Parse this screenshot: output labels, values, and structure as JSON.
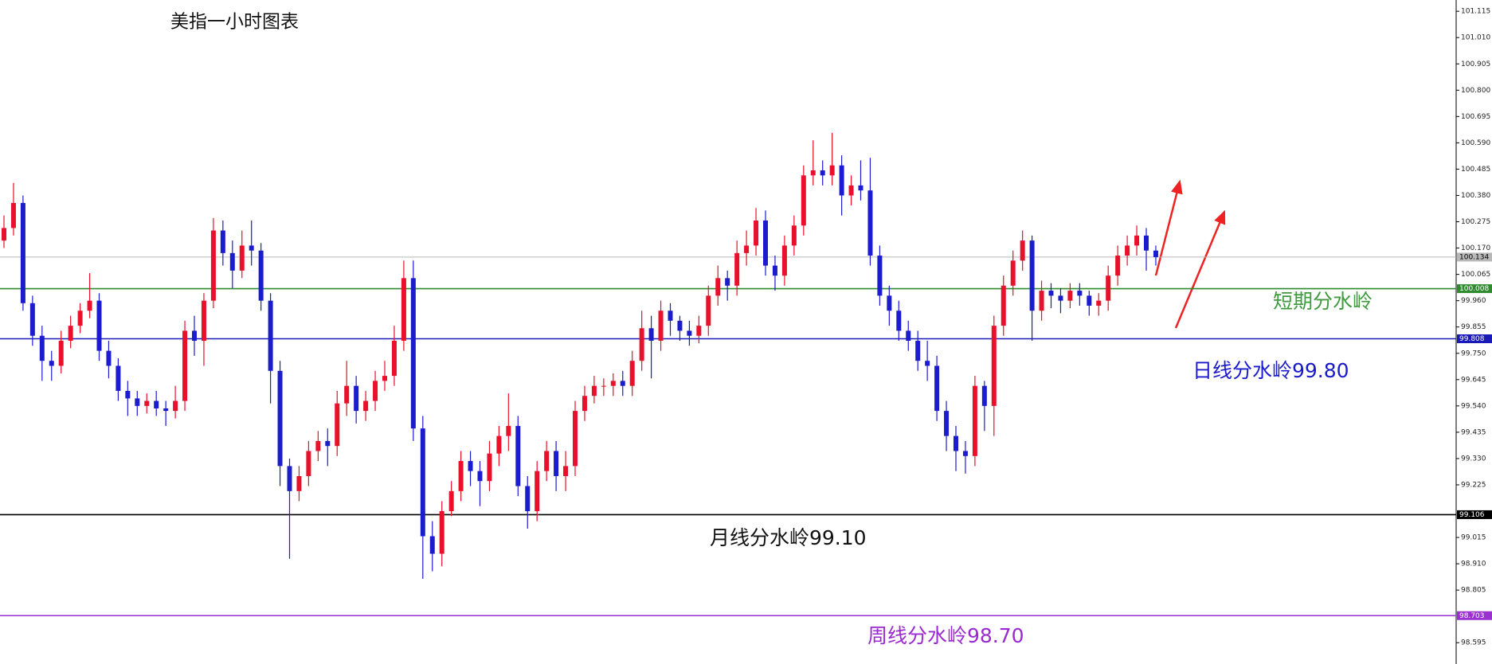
{
  "chart_data": {
    "type": "candlestick",
    "title": "美指一小时图表",
    "up_color": "#e8102a",
    "down_color": "#1c1ccf",
    "ylim": [
      98.51,
      101.16
    ],
    "yticks": [
      101.115,
      {
        "value": 101.01,
        "label": "101.010"
      },
      100.905,
      {
        "value": 100.8,
        "label": "100.800"
      },
      100.695,
      {
        "value": 100.59,
        "label": "100.590"
      },
      100.485,
      {
        "value": 100.38,
        "label": "100.380"
      },
      100.275,
      {
        "value": 100.17,
        "label": "100.170"
      },
      100.065,
      {
        "value": 99.96,
        "label": "99.960"
      },
      99.855,
      {
        "value": 99.75,
        "label": "99.750"
      },
      99.645,
      {
        "value": 99.54,
        "label": "99.540"
      },
      99.435,
      {
        "value": 99.33,
        "label": "99.330"
      },
      99.225,
      99.015,
      {
        "value": 98.91,
        "label": "98.910"
      },
      98.805,
      98.595
    ],
    "open": [
      100.2,
      100.25,
      100.35,
      99.95,
      99.82,
      99.72,
      99.7,
      99.8,
      99.86,
      99.92,
      99.96,
      99.76,
      99.7,
      99.6,
      99.57,
      99.54,
      99.56,
      99.53,
      99.52,
      99.56,
      99.84,
      99.8,
      99.96,
      100.24,
      100.15,
      100.08,
      100.18,
      100.16,
      99.96,
      99.68,
      99.3,
      99.2,
      99.26,
      99.36,
      99.4,
      99.38,
      99.55,
      99.62,
      99.52,
      99.56,
      99.64,
      99.66,
      99.8,
      100.05,
      99.45,
      99.02,
      98.95,
      99.12,
      99.2,
      99.32,
      99.28,
      99.24,
      99.35,
      99.42,
      99.46,
      99.22,
      99.12,
      99.28,
      99.36,
      99.26,
      99.3,
      99.52,
      99.58,
      99.62,
      99.62,
      99.64,
      99.62,
      99.72,
      99.85,
      99.8,
      99.92,
      99.88,
      99.84,
      99.82,
      99.86,
      99.98,
      100.05,
      100.02,
      100.15,
      100.18,
      100.28,
      100.1,
      100.06,
      100.18,
      100.26,
      100.46,
      100.48,
      100.46,
      100.5,
      100.38,
      100.42,
      100.4,
      100.14,
      99.98,
      99.92,
      99.84,
      99.8,
      99.72,
      99.7,
      99.52,
      99.42,
      99.36,
      99.34,
      99.62,
      99.54,
      99.86,
      100.02,
      100.12,
      100.2,
      99.92,
      100.0,
      99.98,
      99.96,
      100.0,
      99.98,
      99.94,
      99.96,
      100.06,
      100.14,
      100.18,
      100.22,
      100.16
    ],
    "high": [
      100.3,
      100.43,
      100.38,
      99.98,
      99.86,
      99.76,
      99.84,
      99.9,
      99.95,
      100.07,
      99.99,
      99.8,
      99.73,
      99.64,
      99.6,
      99.59,
      99.6,
      99.56,
      99.62,
      99.88,
      99.9,
      99.99,
      100.29,
      100.28,
      100.2,
      100.24,
      100.28,
      100.19,
      99.99,
      99.72,
      99.33,
      99.3,
      99.4,
      99.44,
      99.45,
      99.6,
      99.72,
      99.66,
      99.6,
      99.68,
      99.72,
      99.86,
      100.12,
      100.12,
      99.5,
      99.08,
      99.16,
      99.24,
      99.36,
      99.36,
      99.32,
      99.4,
      99.46,
      99.59,
      99.5,
      99.26,
      99.32,
      99.4,
      99.4,
      99.36,
      99.56,
      99.62,
      99.66,
      99.65,
      99.67,
      99.68,
      99.76,
      99.92,
      99.9,
      99.96,
      99.95,
      99.9,
      99.88,
      99.9,
      100.02,
      100.1,
      100.08,
      100.2,
      100.24,
      100.33,
      100.32,
      100.14,
      100.22,
      100.3,
      100.5,
      100.6,
      100.52,
      100.63,
      100.54,
      100.46,
      100.52,
      100.53,
      100.18,
      100.02,
      99.96,
      99.88,
      99.84,
      99.8,
      99.74,
      99.56,
      99.46,
      99.4,
      99.66,
      99.64,
      99.9,
      100.06,
      100.16,
      100.24,
      100.22,
      100.04,
      100.03,
      100.01,
      100.03,
      100.03,
      100.0,
      99.99,
      100.1,
      100.18,
      100.22,
      100.26,
      100.25,
      100.18
    ],
    "low": [
      100.17,
      100.22,
      99.92,
      99.78,
      99.64,
      99.64,
      99.67,
      99.77,
      99.83,
      99.89,
      99.72,
      99.65,
      99.56,
      99.5,
      99.5,
      99.51,
      99.5,
      99.46,
      99.49,
      99.52,
      99.74,
      99.7,
      99.93,
      100.1,
      100.01,
      100.05,
      100.1,
      99.92,
      99.55,
      99.22,
      98.93,
      99.16,
      99.22,
      99.32,
      99.3,
      99.34,
      99.5,
      99.47,
      99.48,
      99.52,
      99.6,
      99.62,
      99.76,
      99.4,
      98.85,
      98.88,
      98.9,
      99.1,
      99.16,
      99.22,
      99.14,
      99.2,
      99.3,
      99.36,
      99.18,
      99.05,
      99.08,
      99.24,
      99.2,
      99.2,
      99.26,
      99.48,
      99.55,
      99.58,
      99.58,
      99.58,
      99.58,
      99.68,
      99.65,
      99.76,
      99.82,
      99.8,
      99.78,
      99.79,
      99.82,
      99.94,
      99.96,
      99.98,
      100.1,
      100.14,
      100.06,
      100.0,
      100.02,
      100.14,
      100.22,
      100.42,
      100.42,
      100.42,
      100.3,
      100.34,
      100.36,
      100.1,
      99.94,
      99.86,
      99.8,
      99.76,
      99.68,
      99.64,
      99.48,
      99.36,
      99.28,
      99.27,
      99.3,
      99.44,
      99.42,
      99.82,
      99.98,
      100.08,
      99.8,
      99.88,
      99.93,
      99.91,
      99.93,
      99.94,
      99.9,
      99.9,
      99.92,
      100.02,
      100.1,
      100.14,
      100.08,
      100.1
    ],
    "close": [
      100.25,
      100.35,
      99.95,
      99.82,
      99.72,
      99.7,
      99.8,
      99.86,
      99.92,
      99.96,
      99.76,
      99.7,
      99.6,
      99.57,
      99.54,
      99.56,
      99.53,
      99.52,
      99.56,
      99.84,
      99.8,
      99.96,
      100.24,
      100.15,
      100.08,
      100.18,
      100.16,
      99.96,
      99.68,
      99.3,
      99.2,
      99.26,
      99.36,
      99.4,
      99.38,
      99.55,
      99.62,
      99.52,
      99.56,
      99.64,
      99.66,
      99.8,
      100.05,
      99.45,
      99.02,
      98.95,
      99.12,
      99.2,
      99.32,
      99.28,
      99.24,
      99.35,
      99.42,
      99.46,
      99.22,
      99.12,
      99.28,
      99.36,
      99.26,
      99.3,
      99.52,
      99.58,
      99.62,
      99.62,
      99.64,
      99.62,
      99.72,
      99.85,
      99.8,
      99.92,
      99.88,
      99.84,
      99.82,
      99.86,
      99.98,
      100.05,
      100.02,
      100.15,
      100.18,
      100.28,
      100.1,
      100.06,
      100.18,
      100.26,
      100.46,
      100.48,
      100.46,
      100.5,
      100.38,
      100.42,
      100.4,
      100.14,
      99.98,
      99.92,
      99.84,
      99.8,
      99.72,
      99.7,
      99.52,
      99.42,
      99.36,
      99.34,
      99.62,
      99.54,
      99.86,
      100.02,
      100.12,
      100.2,
      99.92,
      100.0,
      99.98,
      99.96,
      100.0,
      99.98,
      99.94,
      99.96,
      100.06,
      100.14,
      100.18,
      100.22,
      100.16,
      100.134
    ],
    "levels": [
      {
        "value": 100.134,
        "color": "#b8b8b8"
      },
      {
        "value": 100.008,
        "color": "#2e8b2e"
      },
      {
        "value": 99.808,
        "color": "#1a1ab8"
      },
      {
        "value": 99.106,
        "color": "#000000"
      },
      {
        "value": 98.703,
        "color": "#9b30d0"
      }
    ],
    "annotations": [
      {
        "text": "短期分水岭",
        "color": "#3f9a3f"
      },
      {
        "text": "日线分水岭99.80",
        "color": "#1a1acc"
      },
      {
        "text": "月线分水岭99.10",
        "color": "#111111"
      },
      {
        "text": "周线分水岭98.70",
        "color": "#9a2ad0"
      }
    ]
  }
}
